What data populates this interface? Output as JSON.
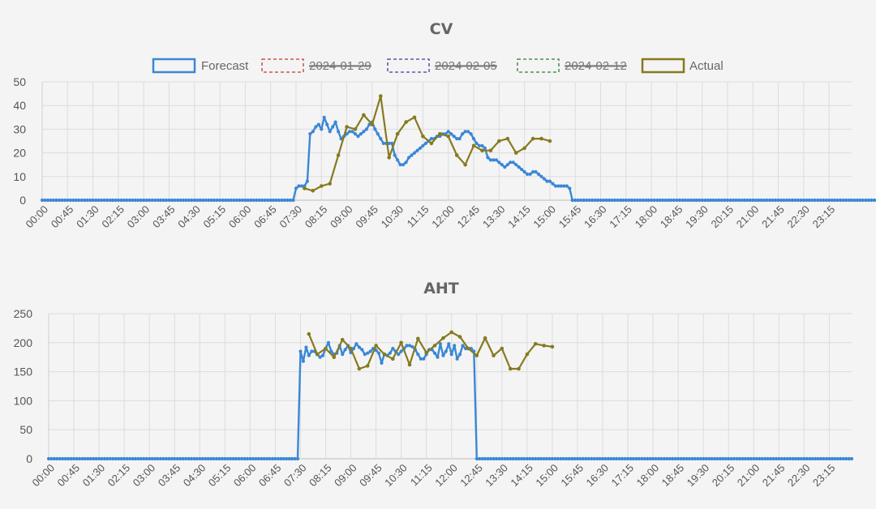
{
  "chart_data": [
    {
      "type": "line",
      "title": "CV",
      "ylim": [
        0,
        50
      ],
      "yticks": [
        0,
        10,
        20,
        30,
        40,
        50
      ],
      "grid": true,
      "legend_position": "top",
      "legend": [
        {
          "label": "Forecast",
          "color": "#3a87d6",
          "style": "solid",
          "hidden": false
        },
        {
          "label": "2024-01-29",
          "color": "#c0392b",
          "style": "dashed",
          "hidden": true
        },
        {
          "label": "2024-02-05",
          "color": "#3b3b9a",
          "style": "dashed",
          "hidden": true
        },
        {
          "label": "2024-02-12",
          "color": "#2e7d32",
          "style": "dashed",
          "hidden": true
        },
        {
          "label": "Actual",
          "color": "#857a1f",
          "style": "solid",
          "hidden": false
        }
      ],
      "x_labels": [
        "00:00",
        "00:45",
        "01:30",
        "02:15",
        "03:00",
        "03:45",
        "04:30",
        "05:15",
        "06:00",
        "06:45",
        "07:30",
        "08:15",
        "09:00",
        "09:45",
        "10:30",
        "11:15",
        "12:00",
        "12:45",
        "13:30",
        "14:15",
        "15:00",
        "15:45",
        "16:30",
        "17:15",
        "18:00",
        "18:45",
        "19:30",
        "20:15",
        "21:00",
        "21:45",
        "22:30",
        "23:15"
      ],
      "series": [
        {
          "name": "Forecast",
          "color": "#3a87d6",
          "values": [
            0,
            0,
            0,
            0,
            0,
            0,
            0,
            0,
            0,
            0,
            0,
            0,
            0,
            0,
            0,
            0,
            0,
            0,
            0,
            0,
            0,
            0,
            0,
            0,
            0,
            0,
            0,
            0,
            0,
            0,
            0,
            0,
            0,
            0,
            0,
            0,
            0,
            0,
            0,
            0,
            0,
            0,
            0,
            0,
            0,
            0,
            0,
            0,
            0,
            0,
            0,
            0,
            0,
            0,
            0,
            0,
            0,
            0,
            0,
            0,
            0,
            0,
            0,
            0,
            0,
            0,
            0,
            0,
            0,
            0,
            0,
            0,
            0,
            0,
            0,
            0,
            0,
            0,
            0,
            0,
            0,
            0,
            0,
            0,
            0,
            0,
            0,
            0,
            0,
            0,
            5,
            6,
            6,
            6,
            8,
            28,
            29,
            31,
            32,
            30,
            35,
            32,
            29,
            31,
            33,
            29,
            26,
            27,
            28,
            29,
            29,
            28,
            27,
            28,
            29,
            30,
            32,
            33,
            30,
            28,
            26,
            24,
            24,
            24,
            24,
            19,
            17,
            15,
            15,
            16,
            18,
            19,
            20,
            21,
            22,
            23,
            24,
            25,
            26,
            26,
            27,
            27,
            28,
            28,
            29,
            28,
            27,
            26,
            26,
            28,
            29,
            29,
            28,
            26,
            24,
            23,
            23,
            22,
            18,
            17,
            17,
            17,
            16,
            15,
            14,
            15,
            16,
            16,
            15,
            14,
            13,
            12,
            11,
            11,
            12,
            12,
            11,
            10,
            9,
            8,
            8,
            7,
            6,
            6,
            6,
            6,
            6,
            5,
            0,
            0,
            0,
            0,
            0,
            0,
            0,
            0,
            0,
            0,
            0,
            0,
            0,
            0,
            0,
            0,
            0,
            0,
            0,
            0,
            0,
            0,
            0,
            0,
            0,
            0,
            0,
            0,
            0,
            0,
            0,
            0,
            0,
            0,
            0,
            0,
            0,
            0,
            0,
            0,
            0,
            0,
            0,
            0,
            0,
            0,
            0,
            0,
            0,
            0,
            0,
            0,
            0,
            0,
            0,
            0,
            0,
            0,
            0,
            0,
            0,
            0,
            0,
            0,
            0,
            0,
            0,
            0,
            0,
            0,
            0,
            0,
            0,
            0,
            0,
            0,
            0,
            0,
            0,
            0,
            0,
            0,
            0,
            0,
            0,
            0,
            0,
            0,
            0,
            0,
            0,
            0,
            0,
            0,
            0,
            0,
            0,
            0,
            0,
            0,
            0,
            0,
            0,
            0,
            0,
            0,
            0,
            0,
            0
          ]
        },
        {
          "name": "Actual",
          "color": "#857a1f",
          "x": [
            "07:45",
            "08:00",
            "08:15",
            "08:30",
            "08:45",
            "09:00",
            "09:15",
            "09:30",
            "09:45",
            "10:00",
            "10:15",
            "10:30",
            "10:45",
            "11:00",
            "11:15",
            "11:30",
            "11:45",
            "12:00",
            "12:15",
            "12:30",
            "12:45",
            "13:00",
            "13:15",
            "13:30",
            "13:45",
            "14:00",
            "14:15",
            "14:30",
            "14:45",
            "15:00"
          ],
          "values": [
            5,
            4,
            6,
            7,
            19,
            31,
            30,
            36,
            32,
            44,
            18,
            28,
            33,
            35,
            27,
            24,
            28,
            27,
            19,
            15,
            23,
            21,
            21,
            25,
            26,
            20,
            22,
            26,
            26,
            25
          ]
        }
      ]
    },
    {
      "type": "line",
      "title": "AHT",
      "ylim": [
        0,
        250
      ],
      "yticks": [
        0,
        50,
        100,
        150,
        200,
        250
      ],
      "grid": true,
      "x_labels": [
        "00:00",
        "00:45",
        "01:30",
        "02:15",
        "03:00",
        "03:45",
        "04:30",
        "05:15",
        "06:00",
        "06:45",
        "07:30",
        "08:15",
        "09:00",
        "09:45",
        "10:30",
        "11:15",
        "12:00",
        "12:45",
        "13:30",
        "14:15",
        "15:00",
        "15:45",
        "16:30",
        "17:15",
        "18:00",
        "18:45",
        "19:30",
        "20:15",
        "21:00",
        "21:45",
        "22:30",
        "23:15"
      ],
      "series": [
        {
          "name": "Forecast",
          "color": "#3a87d6",
          "values": [
            0,
            0,
            0,
            0,
            0,
            0,
            0,
            0,
            0,
            0,
            0,
            0,
            0,
            0,
            0,
            0,
            0,
            0,
            0,
            0,
            0,
            0,
            0,
            0,
            0,
            0,
            0,
            0,
            0,
            0,
            0,
            0,
            0,
            0,
            0,
            0,
            0,
            0,
            0,
            0,
            0,
            0,
            0,
            0,
            0,
            0,
            0,
            0,
            0,
            0,
            0,
            0,
            0,
            0,
            0,
            0,
            0,
            0,
            0,
            0,
            0,
            0,
            0,
            0,
            0,
            0,
            0,
            0,
            0,
            0,
            0,
            0,
            0,
            0,
            0,
            0,
            0,
            0,
            0,
            0,
            0,
            0,
            0,
            0,
            0,
            0,
            0,
            0,
            0,
            0,
            185,
            168,
            192,
            178,
            185,
            185,
            180,
            175,
            178,
            190,
            200,
            185,
            180,
            182,
            195,
            180,
            188,
            195,
            183,
            190,
            198,
            192,
            188,
            180,
            182,
            185,
            190,
            187,
            182,
            165,
            180,
            178,
            182,
            190,
            185,
            180,
            185,
            190,
            195,
            195,
            193,
            188,
            180,
            172,
            172,
            180,
            188,
            188,
            182,
            175,
            198,
            178,
            185,
            198,
            180,
            195,
            172,
            180,
            195,
            190,
            190,
            190,
            185,
            0,
            0,
            0,
            0,
            0,
            0,
            0,
            0,
            0,
            0,
            0,
            0,
            0,
            0,
            0,
            0,
            0,
            0,
            0,
            0,
            0,
            0,
            0,
            0,
            0,
            0,
            0,
            0,
            0,
            0,
            0,
            0,
            0,
            0,
            0,
            0,
            0,
            0,
            0,
            0,
            0,
            0,
            0,
            0,
            0,
            0,
            0,
            0,
            0,
            0,
            0,
            0,
            0,
            0,
            0,
            0,
            0,
            0,
            0,
            0,
            0,
            0,
            0,
            0,
            0,
            0,
            0,
            0,
            0,
            0,
            0,
            0,
            0,
            0,
            0,
            0,
            0,
            0,
            0,
            0,
            0,
            0,
            0,
            0,
            0,
            0,
            0,
            0,
            0,
            0,
            0,
            0,
            0,
            0,
            0,
            0,
            0,
            0,
            0,
            0,
            0,
            0,
            0,
            0,
            0,
            0,
            0,
            0,
            0,
            0,
            0,
            0,
            0,
            0,
            0,
            0,
            0,
            0,
            0,
            0,
            0,
            0,
            0,
            0,
            0,
            0,
            0,
            0,
            0,
            0,
            0,
            0,
            0,
            0,
            0
          ]
        },
        {
          "name": "Actual",
          "color": "#857a1f",
          "x": [
            "07:45",
            "08:00",
            "08:15",
            "08:30",
            "08:45",
            "09:00",
            "09:15",
            "09:30",
            "09:45",
            "10:00",
            "10:15",
            "10:30",
            "10:45",
            "11:00",
            "11:15",
            "11:30",
            "11:45",
            "12:00",
            "12:15",
            "12:30",
            "12:45",
            "13:00",
            "13:15",
            "13:30",
            "13:45",
            "14:00",
            "14:15",
            "14:30",
            "14:45",
            "15:00"
          ],
          "values": [
            215,
            180,
            190,
            175,
            205,
            190,
            155,
            160,
            195,
            180,
            172,
            200,
            162,
            207,
            183,
            195,
            208,
            218,
            210,
            190,
            178,
            208,
            178,
            190,
            155,
            155,
            180,
            198,
            195,
            193
          ]
        }
      ]
    }
  ]
}
